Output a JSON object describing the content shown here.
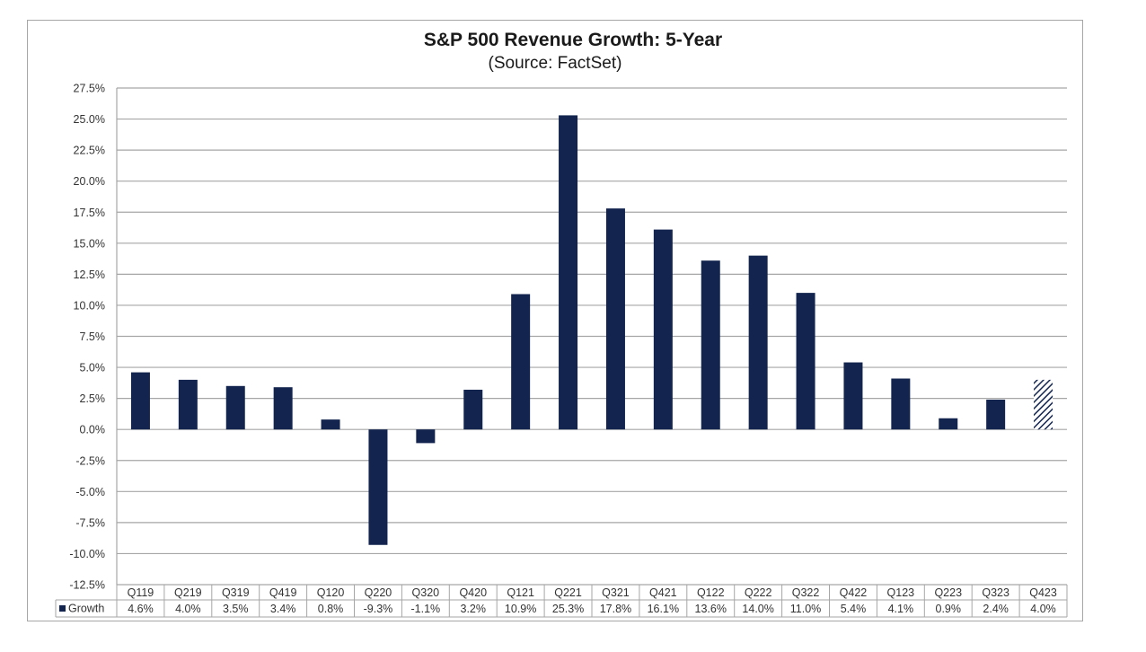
{
  "chart_data": {
    "type": "bar",
    "title": "S&P 500 Revenue Growth: 5-Year",
    "subtitle": "(Source: FactSet)",
    "xlabel": "",
    "ylabel": "",
    "ylim": [
      -12.5,
      27.5
    ],
    "ytick_step": 2.5,
    "yticks": [
      "27.5%",
      "25.0%",
      "22.5%",
      "20.0%",
      "17.5%",
      "15.0%",
      "12.5%",
      "10.0%",
      "7.5%",
      "5.0%",
      "2.5%",
      "0.0%",
      "-2.5%",
      "-5.0%",
      "-7.5%",
      "-10.0%",
      "-12.5%"
    ],
    "grid": true,
    "legend": "bottom-left (data table)",
    "categories": [
      "Q119",
      "Q219",
      "Q319",
      "Q419",
      "Q120",
      "Q220",
      "Q320",
      "Q420",
      "Q121",
      "Q221",
      "Q321",
      "Q421",
      "Q122",
      "Q222",
      "Q322",
      "Q422",
      "Q123",
      "Q223",
      "Q323",
      "Q423"
    ],
    "series": [
      {
        "name": "Growth",
        "color": "#13254f",
        "values": [
          4.6,
          4.0,
          3.5,
          3.4,
          0.8,
          -9.3,
          -1.1,
          3.2,
          10.9,
          25.3,
          17.8,
          16.1,
          13.6,
          14.0,
          11.0,
          5.4,
          4.1,
          0.9,
          2.4,
          4.0
        ],
        "labels": [
          "4.6%",
          "4.0%",
          "3.5%",
          "3.4%",
          "0.8%",
          "-9.3%",
          "-1.1%",
          "3.2%",
          "10.9%",
          "25.3%",
          "17.8%",
          "16.1%",
          "13.6%",
          "14.0%",
          "11.0%",
          "5.4%",
          "4.1%",
          "0.9%",
          "2.4%",
          "4.0%"
        ],
        "estimate_categories": [
          "Q423"
        ]
      }
    ]
  },
  "colors": {
    "bar": "#13254f",
    "grid": "#a6a6a6",
    "axis_text": "#333333"
  }
}
